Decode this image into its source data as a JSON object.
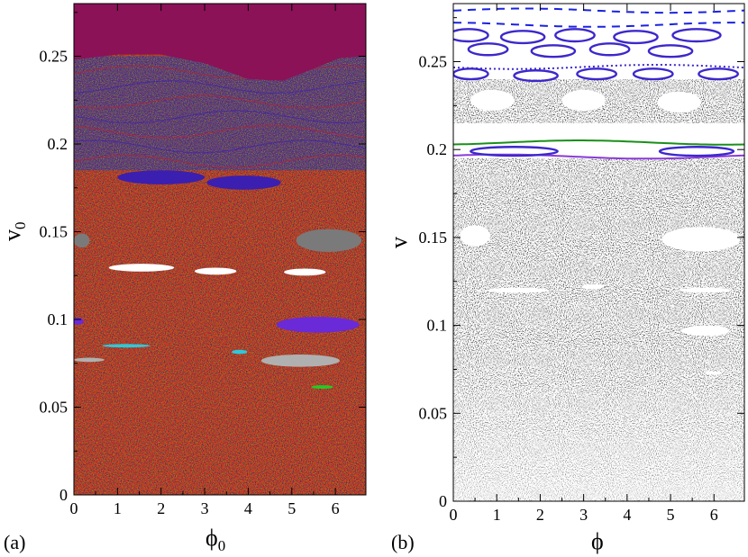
{
  "figure": {
    "panels": [
      {
        "id": "a",
        "panel_label": "(a)",
        "xlabel_main": "ϕ",
        "xlabel_sub": "0",
        "ylabel_main": "v",
        "ylabel_sub": "0"
      },
      {
        "id": "b",
        "panel_label": "(b)",
        "xlabel_main": "ϕ",
        "xlabel_sub": "",
        "ylabel_main": "v",
        "ylabel_sub": ""
      }
    ]
  },
  "chart_data": [
    {
      "type": "heatmap",
      "panel": "(a)",
      "xlabel": "ϕ0",
      "ylabel": "v0",
      "xlim": [
        0,
        6.7
      ],
      "ylim": [
        0,
        0.28
      ],
      "xticks": [
        0,
        1,
        2,
        3,
        4,
        5,
        6
      ],
      "yticks": [
        0,
        0.05,
        0.1,
        0.15,
        0.2,
        0.25
      ],
      "ytick_labels": [
        "0",
        "0.05",
        "0.1",
        "0.15",
        "0.2",
        "0.25"
      ],
      "colors": {
        "top_region": "#8b1257",
        "chaotic_red": "#e8261c",
        "speckle_green": "#6fa81e",
        "speckle_dark": "#3a2a6a",
        "band_blue": "#3b1fb0",
        "band_purple": "#6a2ad8",
        "gray_island": "#7a7a7a",
        "light_gray": "#b0b0b0",
        "white": "#ffffff",
        "cyan": "#2fc8d8",
        "green": "#22cc22"
      },
      "regions": [
        {
          "name": "upper basin",
          "x": [
            0,
            6.7
          ],
          "v_lower_boundary": [
            [
              0,
              0.248
            ],
            [
              1,
              0.251
            ],
            [
              2,
              0.251
            ],
            [
              3,
              0.246
            ],
            [
              4,
              0.237
            ],
            [
              4.8,
              0.236
            ],
            [
              5.5,
              0.243
            ],
            [
              6.1,
              0.249
            ],
            [
              6.7,
              0.25
            ]
          ],
          "v_top": 0.28,
          "color": "top_region"
        },
        {
          "name": "chaotic band",
          "v_range": [
            0.185,
            0.25
          ],
          "color": "mixed blue/red"
        },
        {
          "name": "chaotic sea",
          "v_range": [
            0,
            0.185
          ],
          "color": "chaotic_red"
        }
      ],
      "islands": [
        {
          "cx": 2.0,
          "cy": 0.181,
          "rx": 1.0,
          "ry": 0.004,
          "color": "band_blue"
        },
        {
          "cx": 3.9,
          "cy": 0.178,
          "rx": 0.85,
          "ry": 0.004,
          "color": "band_blue"
        },
        {
          "cx": 5.85,
          "cy": 0.145,
          "rx": 0.75,
          "ry": 0.0065,
          "color": "gray_island"
        },
        {
          "cx": 0.18,
          "cy": 0.145,
          "rx": 0.18,
          "ry": 0.004,
          "color": "gray_island"
        },
        {
          "cx": 1.55,
          "cy": 0.1295,
          "rx": 0.75,
          "ry": 0.0022,
          "color": "white"
        },
        {
          "cx": 3.25,
          "cy": 0.1275,
          "rx": 0.48,
          "ry": 0.002,
          "color": "white"
        },
        {
          "cx": 5.3,
          "cy": 0.127,
          "rx": 0.48,
          "ry": 0.002,
          "color": "white"
        },
        {
          "cx": 5.6,
          "cy": 0.097,
          "rx": 0.95,
          "ry": 0.0045,
          "color": "band_purple"
        },
        {
          "cx": 0.1,
          "cy": 0.099,
          "rx": 0.12,
          "ry": 0.002,
          "color": "band_purple"
        },
        {
          "cx": 1.2,
          "cy": 0.085,
          "rx": 0.55,
          "ry": 0.001,
          "color": "cyan"
        },
        {
          "cx": 3.8,
          "cy": 0.0815,
          "rx": 0.18,
          "ry": 0.0012,
          "color": "cyan"
        },
        {
          "cx": 5.2,
          "cy": 0.0765,
          "rx": 0.9,
          "ry": 0.0035,
          "color": "light_gray"
        },
        {
          "cx": 0.35,
          "cy": 0.077,
          "rx": 0.35,
          "ry": 0.0012,
          "color": "light_gray"
        },
        {
          "cx": 5.7,
          "cy": 0.0615,
          "rx": 0.25,
          "ry": 0.001,
          "color": "green"
        }
      ]
    },
    {
      "type": "scatter",
      "panel": "(b)",
      "xlabel": "ϕ",
      "ylabel": "v",
      "xlim": [
        0,
        6.7
      ],
      "ylim": [
        0,
        0.283
      ],
      "xticks": [
        0,
        1,
        2,
        3,
        4,
        5,
        6
      ],
      "yticks": [
        0,
        0.05,
        0.1,
        0.15,
        0.2,
        0.25
      ],
      "ytick_labels": [
        "0",
        "0.05",
        "0.1",
        "0.15",
        "0.2",
        "0.25"
      ],
      "colors": {
        "orbit": "#000000",
        "blue": "#1a22e0",
        "indigo": "#3c28cc",
        "green": "#1a8f1a",
        "violet": "#8a3ad8"
      },
      "orbits": [
        {
          "name": "chaotic sea",
          "v_range": [
            0,
            0.195
          ],
          "color": "orbit"
        },
        {
          "name": "island chain",
          "v_range": [
            0.215,
            0.24
          ],
          "color": "orbit"
        }
      ],
      "white_islands": [
        {
          "cx": 0.9,
          "cy": 0.228,
          "rx": 0.5,
          "ry": 0.006
        },
        {
          "cx": 3.0,
          "cy": 0.228,
          "rx": 0.5,
          "ry": 0.006
        },
        {
          "cx": 5.2,
          "cy": 0.227,
          "rx": 0.5,
          "ry": 0.006
        },
        {
          "cx": 0.5,
          "cy": 0.151,
          "rx": 0.35,
          "ry": 0.006
        },
        {
          "cx": 5.7,
          "cy": 0.149,
          "rx": 0.9,
          "ry": 0.007
        },
        {
          "cx": 1.5,
          "cy": 0.12,
          "rx": 0.7,
          "ry": 0.0015
        },
        {
          "cx": 5.8,
          "cy": 0.12,
          "rx": 0.6,
          "ry": 0.0015
        },
        {
          "cx": 3.2,
          "cy": 0.122,
          "rx": 0.25,
          "ry": 0.0015
        },
        {
          "cx": 5.8,
          "cy": 0.097,
          "rx": 0.55,
          "ry": 0.003
        },
        {
          "cx": 6.0,
          "cy": 0.073,
          "rx": 0.2,
          "ry": 0.001
        }
      ],
      "invariant_curves": [
        {
          "name": "dashed top",
          "v": 0.279,
          "color": "blue",
          "style": "dashed"
        },
        {
          "name": "dashed second",
          "v": 0.271,
          "color": "blue",
          "style": "dashed"
        },
        {
          "name": "dotted lower",
          "v": 0.247,
          "color": "indigo",
          "style": "dotted"
        },
        {
          "name": "green separatrix",
          "v": 0.204,
          "color": "green",
          "style": "solid"
        },
        {
          "name": "violet lower",
          "v": 0.196,
          "color": "violet",
          "style": "solid"
        }
      ],
      "resonance_rings": [
        {
          "cx": 0.35,
          "cy": 0.265,
          "rx": 0.45,
          "ry": 0.0035
        },
        {
          "cx": 1.6,
          "cy": 0.264,
          "rx": 0.5,
          "ry": 0.0035
        },
        {
          "cx": 2.8,
          "cy": 0.265,
          "rx": 0.45,
          "ry": 0.0035
        },
        {
          "cx": 4.2,
          "cy": 0.264,
          "rx": 0.5,
          "ry": 0.0035
        },
        {
          "cx": 5.6,
          "cy": 0.265,
          "rx": 0.55,
          "ry": 0.0035
        },
        {
          "cx": 0.8,
          "cy": 0.257,
          "rx": 0.45,
          "ry": 0.0033
        },
        {
          "cx": 2.3,
          "cy": 0.256,
          "rx": 0.5,
          "ry": 0.0033
        },
        {
          "cx": 3.6,
          "cy": 0.257,
          "rx": 0.45,
          "ry": 0.0033
        },
        {
          "cx": 5.0,
          "cy": 0.256,
          "rx": 0.5,
          "ry": 0.0033
        },
        {
          "cx": 0.4,
          "cy": 0.243,
          "rx": 0.4,
          "ry": 0.003
        },
        {
          "cx": 1.9,
          "cy": 0.242,
          "rx": 0.5,
          "ry": 0.003
        },
        {
          "cx": 3.3,
          "cy": 0.243,
          "rx": 0.45,
          "ry": 0.003
        },
        {
          "cx": 4.6,
          "cy": 0.243,
          "rx": 0.45,
          "ry": 0.003
        },
        {
          "cx": 6.1,
          "cy": 0.243,
          "rx": 0.45,
          "ry": 0.003
        },
        {
          "cx": 1.4,
          "cy": 0.199,
          "rx": 1.0,
          "ry": 0.0025
        },
        {
          "cx": 5.6,
          "cy": 0.199,
          "rx": 0.85,
          "ry": 0.0025
        }
      ]
    }
  ]
}
